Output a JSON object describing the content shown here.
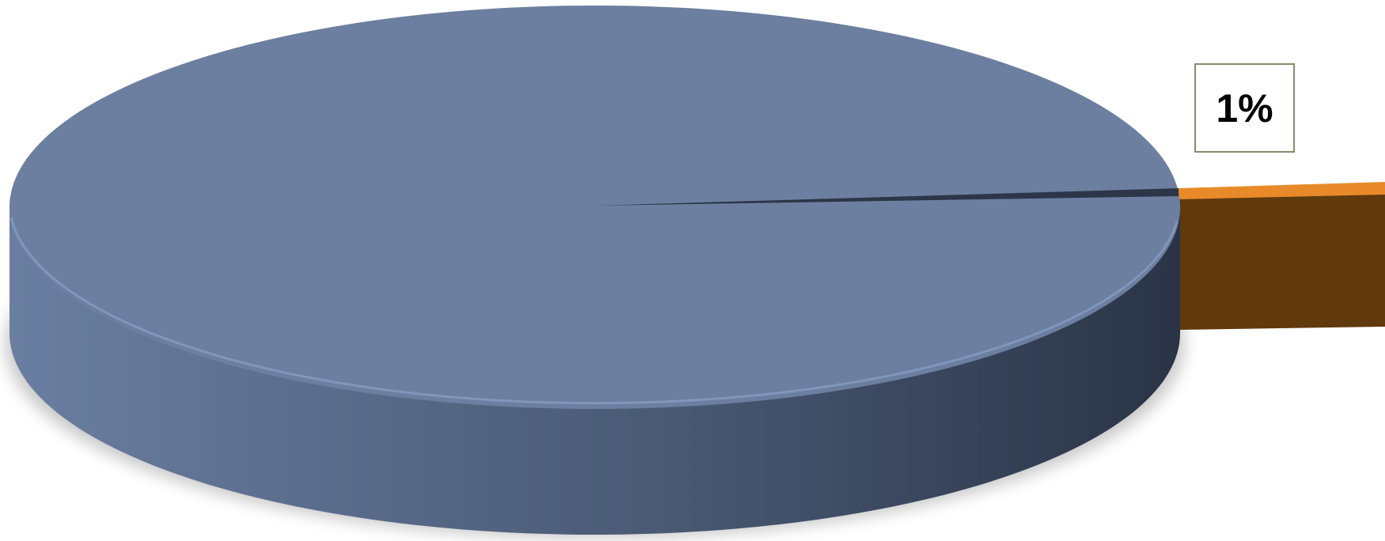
{
  "chart_data": {
    "type": "pie",
    "style": "3d-exploded",
    "title": "",
    "slices": [
      {
        "value": 99,
        "color": "#6c7fa0",
        "label": ""
      },
      {
        "value": 1,
        "color": "#e88a2a",
        "label": "1%"
      }
    ],
    "legend": "none"
  }
}
